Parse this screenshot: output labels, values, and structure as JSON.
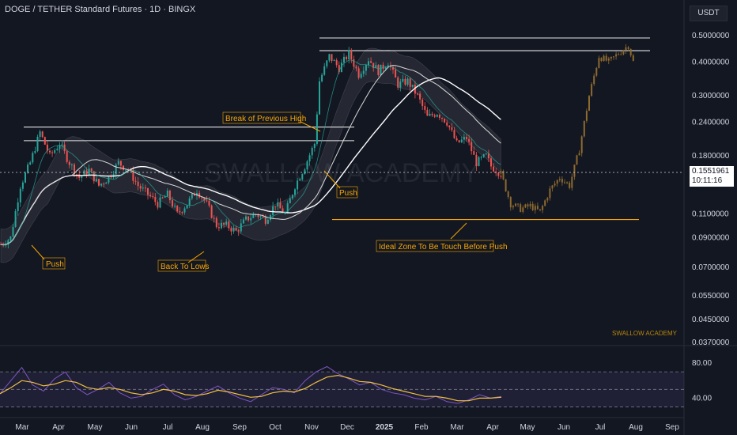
{
  "header": {
    "title": "DOGE / TETHER Standard Futures · 1D · BINGX",
    "currency": "USDT"
  },
  "watermark": "SWALLOW ACADEMY",
  "signature": "SWALLOW ACADEMY",
  "current_price": {
    "price": "0.1551961",
    "countdown": "10:11:16"
  },
  "colors": {
    "background": "#131722",
    "up": "#26a69a",
    "down": "#ef5350",
    "projection": "#8d6a2f",
    "annotation": "#f7a600",
    "rsi_line": "#7e57c2",
    "rsi_ma": "#f0c040"
  },
  "chart_data": [
    {
      "type": "candlestick",
      "y_scale": "log",
      "y_ticks": [
        "0.5000000",
        "0.4000000",
        "0.3000000",
        "0.2400000",
        "0.1800000",
        "0.1100000",
        "0.0900000",
        "0.0700000",
        "0.0550000",
        "0.0450000",
        "0.0370000"
      ],
      "y_tick_values": [
        0.5,
        0.4,
        0.3,
        0.24,
        0.18,
        0.11,
        0.09,
        0.07,
        0.055,
        0.045,
        0.037
      ],
      "x_ticks": [
        "Mar",
        "Apr",
        "May",
        "Jun",
        "Jul",
        "Aug",
        "Sep",
        "Oct",
        "Nov",
        "Dec",
        "2025",
        "Feb",
        "Mar",
        "Apr",
        "May",
        "Jun",
        "Jul",
        "Aug",
        "Sep"
      ],
      "horizontal_levels": [
        0.49,
        0.44,
        0.23,
        0.205,
        0.105
      ],
      "price_path": [
        [
          0,
          0.085
        ],
        [
          4,
          0.09
        ],
        [
          8,
          0.14
        ],
        [
          12,
          0.17
        ],
        [
          16,
          0.22
        ],
        [
          20,
          0.18
        ],
        [
          24,
          0.2
        ],
        [
          28,
          0.17
        ],
        [
          32,
          0.15
        ],
        [
          36,
          0.16
        ],
        [
          40,
          0.14
        ],
        [
          44,
          0.15
        ],
        [
          48,
          0.17
        ],
        [
          52,
          0.16
        ],
        [
          56,
          0.14
        ],
        [
          60,
          0.13
        ],
        [
          64,
          0.12
        ],
        [
          68,
          0.13
        ],
        [
          72,
          0.11
        ],
        [
          76,
          0.12
        ],
        [
          80,
          0.135
        ],
        [
          84,
          0.12
        ],
        [
          88,
          0.1
        ],
        [
          92,
          0.1
        ],
        [
          96,
          0.095
        ],
        [
          100,
          0.105
        ],
        [
          104,
          0.11
        ],
        [
          108,
          0.105
        ],
        [
          112,
          0.12
        ],
        [
          116,
          0.11
        ],
        [
          120,
          0.14
        ],
        [
          124,
          0.165
        ],
        [
          128,
          0.2
        ],
        [
          130,
          0.34
        ],
        [
          134,
          0.42
        ],
        [
          138,
          0.38
        ],
        [
          142,
          0.43
        ],
        [
          146,
          0.36
        ],
        [
          150,
          0.41
        ],
        [
          154,
          0.37
        ],
        [
          158,
          0.4
        ],
        [
          162,
          0.33
        ],
        [
          166,
          0.34
        ],
        [
          170,
          0.3
        ],
        [
          174,
          0.25
        ],
        [
          178,
          0.26
        ],
        [
          182,
          0.24
        ],
        [
          186,
          0.2
        ],
        [
          190,
          0.21
        ],
        [
          194,
          0.17
        ],
        [
          198,
          0.18
        ],
        [
          200,
          0.165
        ],
        [
          204,
          0.155
        ]
      ],
      "projection_path": [
        [
          204,
          0.155
        ],
        [
          208,
          0.12
        ],
        [
          212,
          0.115
        ],
        [
          216,
          0.118
        ],
        [
          220,
          0.112
        ],
        [
          224,
          0.135
        ],
        [
          228,
          0.15
        ],
        [
          232,
          0.14
        ],
        [
          236,
          0.19
        ],
        [
          240,
          0.3
        ],
        [
          244,
          0.42
        ],
        [
          248,
          0.4
        ],
        [
          252,
          0.43
        ],
        [
          256,
          0.46
        ],
        [
          258,
          0.4
        ]
      ],
      "annotations": [
        "Push",
        "Back To Lows",
        "Break of Previous High",
        "Push",
        "Ideal Zone To Be Touch Before Push"
      ]
    },
    {
      "type": "line",
      "indicator": "RSI",
      "y_ticks": [
        "80.00",
        "40.00"
      ],
      "y_tick_values": [
        80,
        40
      ],
      "levels": [
        70,
        50,
        30
      ],
      "series": [
        {
          "values": [
            45,
            60,
            75,
            55,
            48,
            62,
            70,
            52,
            44,
            50,
            58,
            46,
            40,
            42,
            50,
            56,
            44,
            38,
            42,
            48,
            54,
            46,
            40,
            36,
            44,
            52,
            50,
            46,
            60,
            70,
            76,
            68,
            62,
            55,
            58,
            50,
            46,
            44,
            40,
            38,
            42,
            36,
            34,
            38,
            44,
            40,
            42
          ]
        },
        {
          "values": [
            45,
            52,
            60,
            58,
            54,
            56,
            60,
            58,
            52,
            50,
            52,
            50,
            46,
            44,
            46,
            50,
            48,
            44,
            43,
            45,
            49,
            47,
            44,
            41,
            42,
            46,
            48,
            47,
            51,
            58,
            64,
            66,
            63,
            59,
            58,
            55,
            51,
            48,
            45,
            42,
            42,
            40,
            37,
            37,
            40,
            40,
            41
          ]
        }
      ]
    }
  ]
}
